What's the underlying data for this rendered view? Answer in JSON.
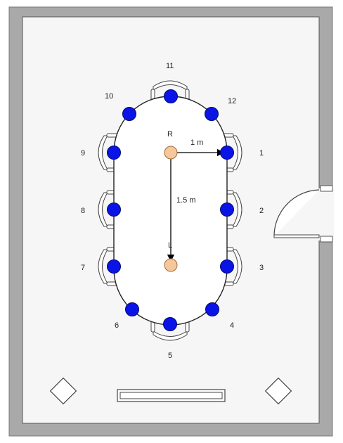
{
  "seat_labels": {
    "s1": "1",
    "s2": "2",
    "s3": "3",
    "s4": "4",
    "s5": "5",
    "s6": "6",
    "s7": "7",
    "s8": "8",
    "s9": "9",
    "s10": "10",
    "s11": "11",
    "s12": "12"
  },
  "point_labels": {
    "r": "R",
    "l": "L"
  },
  "dimensions": {
    "horizontal": "1 m",
    "vertical": "1.5 m"
  },
  "colors": {
    "wall": "#a9a9a9",
    "floor": "#f6f6f6",
    "seat_marker": "#0a14e6",
    "source_marker": "#f6c79a"
  }
}
